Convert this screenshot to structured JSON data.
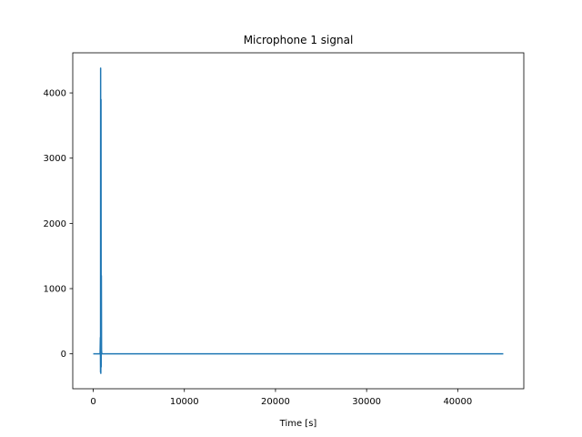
{
  "chart_data": {
    "type": "line",
    "title": "Microphone 1 signal",
    "xlabel": "Time [s]",
    "ylabel": "",
    "xlim": [
      -2250,
      47250
    ],
    "ylim": [
      -535,
      4615
    ],
    "xticks": [
      0,
      10000,
      20000,
      30000,
      40000
    ],
    "xtick_labels": [
      "0",
      "10000",
      "20000",
      "30000",
      "40000"
    ],
    "yticks": [
      0,
      1000,
      2000,
      3000,
      4000
    ],
    "ytick_labels": [
      "0",
      "1000",
      "2000",
      "3000",
      "4000"
    ],
    "grid": false,
    "legend": "none",
    "series": [
      {
        "color": "#1f77b4",
        "x": [
          0,
          750,
          780,
          800,
          810,
          830,
          850,
          870,
          890,
          910,
          940,
          1000,
          45000
        ],
        "y": [
          0,
          0,
          250,
          -280,
          4380,
          -300,
          3900,
          -200,
          1200,
          50,
          0,
          0,
          0
        ]
      }
    ]
  }
}
